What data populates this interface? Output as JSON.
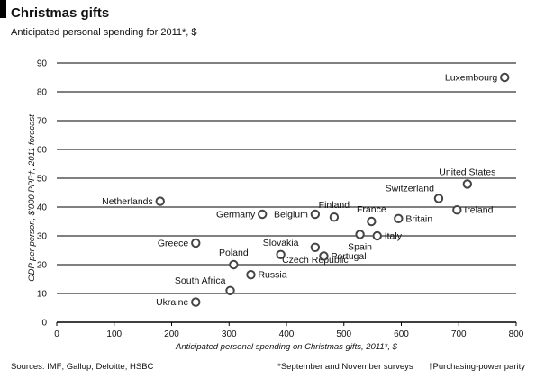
{
  "title": "Christmas gifts",
  "subtitle": "Anticipated personal spending for 2011*, $",
  "source": "Sources: IMF; Gallup; Deloitte; HSBC",
  "footnote1": "*September and November surveys",
  "footnote2": "†Purchasing-power parity",
  "colors": {
    "marker": "#444444",
    "gridline": "#000000",
    "axis": "#000000"
  },
  "chart_data": {
    "type": "scatter",
    "title": "Christmas gifts",
    "subtitle": "Anticipated personal spending for 2011*, $",
    "xlabel": "Anticipated personal spending on Christmas gifts, 2011*, $",
    "ylabel": "GDP per person, $'000 PPP†, 2011 forecast",
    "xlim": [
      0,
      800
    ],
    "ylim": [
      0,
      90
    ],
    "xticks": [
      0,
      100,
      200,
      300,
      400,
      500,
      600,
      700,
      800
    ],
    "yticks": [
      0,
      10,
      20,
      30,
      40,
      50,
      60,
      70,
      80,
      90
    ],
    "grid": "horizontal",
    "points": [
      {
        "label": "Luxembourg",
        "x": 780,
        "y": 85,
        "label_pos": "left"
      },
      {
        "label": "United States",
        "x": 715,
        "y": 48,
        "label_pos": "top"
      },
      {
        "label": "Switzerland",
        "x": 665,
        "y": 43,
        "label_pos": "topleft"
      },
      {
        "label": "Ireland",
        "x": 697,
        "y": 39,
        "label_pos": "right"
      },
      {
        "label": "Britain",
        "x": 595,
        "y": 36,
        "label_pos": "right"
      },
      {
        "label": "France",
        "x": 548,
        "y": 35,
        "label_pos": "top"
      },
      {
        "label": "Finland",
        "x": 483,
        "y": 36.5,
        "label_pos": "top"
      },
      {
        "label": "Belgium",
        "x": 450,
        "y": 37.5,
        "label_pos": "left"
      },
      {
        "label": "Germany",
        "x": 358,
        "y": 37.5,
        "label_pos": "left"
      },
      {
        "label": "Netherlands",
        "x": 180,
        "y": 42,
        "label_pos": "left"
      },
      {
        "label": "Spain",
        "x": 528,
        "y": 30.5,
        "label_pos": "bottom"
      },
      {
        "label": "Italy",
        "x": 558,
        "y": 30,
        "label_pos": "right"
      },
      {
        "label": "Slovakia",
        "x": 390,
        "y": 23.5,
        "label_pos": "top"
      },
      {
        "label": "Czech Republic",
        "x": 450,
        "y": 26,
        "label_pos": "bottom"
      },
      {
        "label": "Portugal",
        "x": 465,
        "y": 23,
        "label_pos": "right"
      },
      {
        "label": "Greece",
        "x": 242,
        "y": 27.5,
        "label_pos": "left"
      },
      {
        "label": "Poland",
        "x": 308,
        "y": 20,
        "label_pos": "top"
      },
      {
        "label": "Russia",
        "x": 338,
        "y": 16.5,
        "label_pos": "right"
      },
      {
        "label": "South Africa",
        "x": 302,
        "y": 11,
        "label_pos": "topleft"
      },
      {
        "label": "Ukraine",
        "x": 242,
        "y": 7,
        "label_pos": "left"
      }
    ]
  }
}
